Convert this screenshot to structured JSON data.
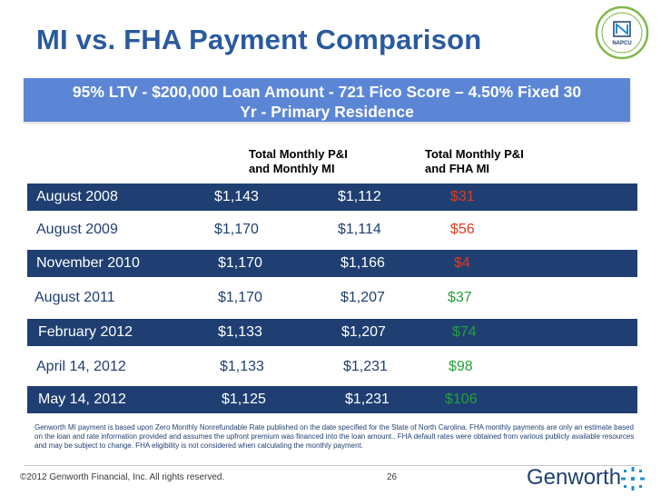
{
  "slide": {
    "title": "MI vs. FHA Payment Comparison",
    "subtitle_line1": "95% LTV -  $200,000 Loan Amount - 721 Fico Score – 4.50% Fixed 30",
    "subtitle_line2": "Yr - Primary Residence",
    "badge_text": "NAPCU"
  },
  "table": {
    "col2_header_line1": "Total Monthly P&I",
    "col2_header_line2": "and Monthly MI",
    "col3_header_line1": "Total Monthly P&I",
    "col3_header_line2": "and FHA MI",
    "rows": [
      {
        "date": "August 2008",
        "mi": "$1,143",
        "fha": "$1,112",
        "diff": "$31"
      },
      {
        "date": "August 2009",
        "mi": "$1,170",
        "fha": "$1,114",
        "diff": "$56"
      },
      {
        "date": "November 2010",
        "mi": "$1,170",
        "fha": "$1,166",
        "diff": "$4"
      },
      {
        "date": "August 2011",
        "mi": "$1,170",
        "fha": "$1,207",
        "diff": "$37"
      },
      {
        "date": "February 2012",
        "mi": "$1,133",
        "fha": "$1,207",
        "diff": "$74"
      },
      {
        "date": "April 14, 2012",
        "mi": "$1,133",
        "fha": "$1,231",
        "diff": "$98"
      },
      {
        "date": "May 14,  2012",
        "mi": "$1,125",
        "fha": "$1,231",
        "diff": "$106"
      }
    ]
  },
  "footnote": "Genworth MI payment is based upon Zero Monthly Nonrefundable Rate published on the date specified for the State of North Carolina.   FHA monthly payments are only an estimate based on the loan and rate information provided and assumes the upfront premium was financed into the loan amount.. FHA default rates were obtained from various publicly available resources and may be subject to change. FHA eligibility is not considered when calculating the monthly payment.",
  "footer": {
    "copyright": "©2012 Genworth Financial, Inc. All rights reserved.",
    "page": "26",
    "logo_text": "Genworth"
  },
  "colors": {
    "title": "#2a5a9e",
    "subtitle_bg": "#5b86d6",
    "dark_row": "#1f3f72",
    "diff_red": "#e03a1e",
    "diff_green": "#24a13a"
  }
}
